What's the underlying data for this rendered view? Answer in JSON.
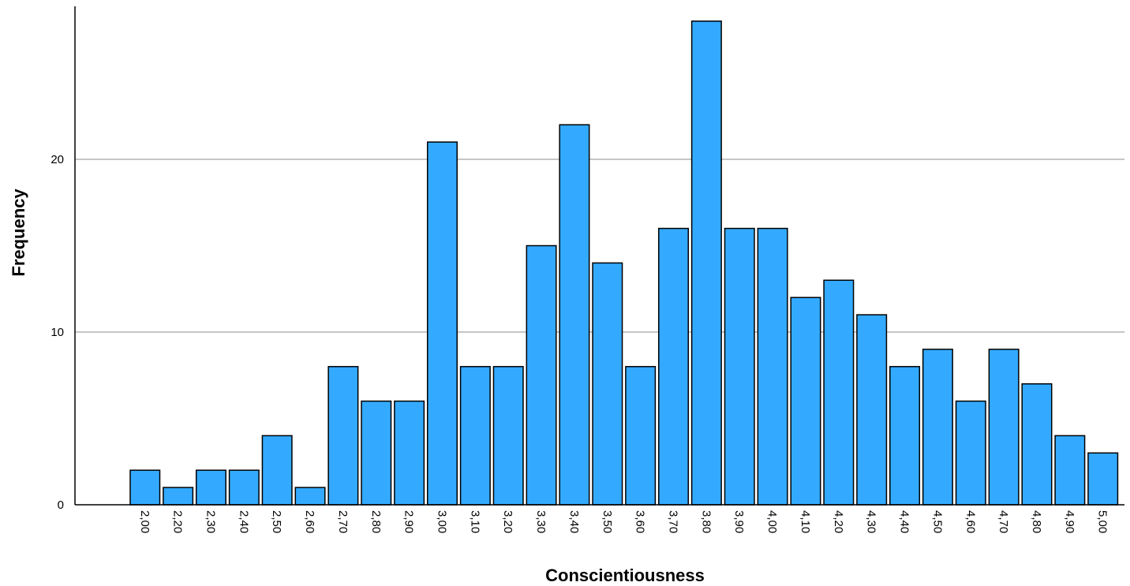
{
  "chart_data": {
    "type": "bar",
    "title": "",
    "xlabel": "Conscientiousness",
    "ylabel": "Frequency",
    "categories": [
      "2,00",
      "2,20",
      "2,30",
      "2,40",
      "2,50",
      "2,60",
      "2,70",
      "2,80",
      "2,90",
      "3,00",
      "3,10",
      "3,20",
      "3,30",
      "3,40",
      "3,50",
      "3,60",
      "3,70",
      "3,80",
      "3,90",
      "4,00",
      "4,10",
      "4,20",
      "4,30",
      "4,40",
      "4,50",
      "4,60",
      "4,70",
      "4,80",
      "4,90",
      "5,00"
    ],
    "values": [
      2,
      1,
      2,
      2,
      4,
      1,
      8,
      6,
      6,
      21,
      8,
      8,
      15,
      22,
      14,
      8,
      16,
      28,
      16,
      16,
      12,
      13,
      11,
      8,
      9,
      6,
      9,
      7,
      4,
      3
    ],
    "ylim": [
      0,
      29
    ],
    "yticks": [
      0,
      10,
      20
    ],
    "grid": true,
    "legend": "none",
    "colors": {
      "bar_fill": "#33aaff",
      "bar_stroke": "#000000",
      "grid": "#b4b4b4"
    }
  }
}
